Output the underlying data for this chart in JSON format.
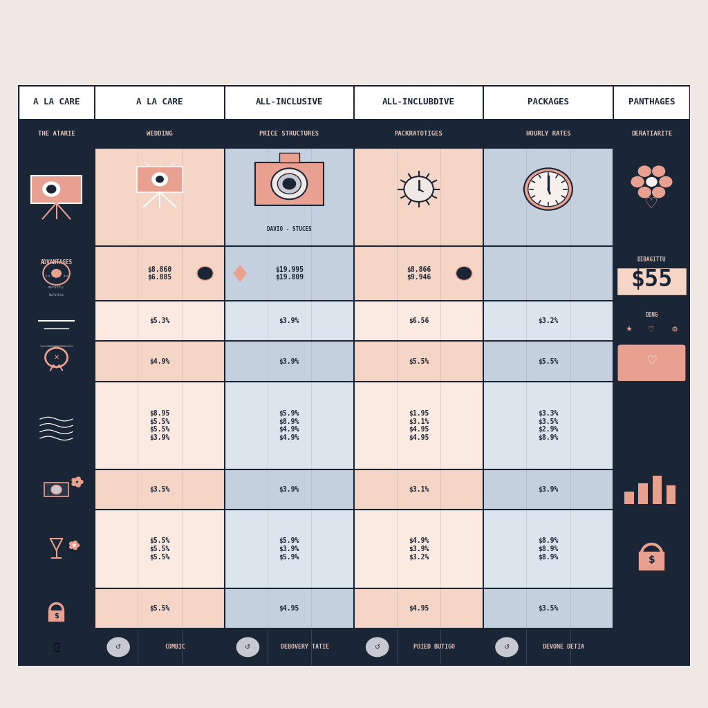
{
  "bg_color": "#f0e8e4",
  "header_bg": "#ffffff",
  "header_border": "#1a2535",
  "header_text_color": "#1a2535",
  "subheader_bg": "#1a2535",
  "subheader_text_color": "#e8c4b8",
  "col1_bg": "#f5d5c5",
  "col2_bg": "#c5d0de",
  "col1_alt": "#faeae2",
  "col2_alt": "#dce5ee",
  "left_panel_bg": "#1a2535",
  "right_panel_bg": "#1a2535",
  "footer_bg": "#1a2535",
  "text_dark": "#1a2535",
  "text_salmon": "#e8a090",
  "columns": [
    "A LA CARE",
    "A LA CARE",
    "ALL-INCLUSIVE",
    "ALL-INCLUBDIVE",
    "PACKAGES",
    "PANTHAGES"
  ],
  "subheaders": [
    "THE ATARIE",
    "WEDDING",
    "PRICE STRUCTURES",
    "PACKRATOTIGES",
    "HOURLY RATES",
    "DERATIARITE"
  ],
  "footer_labels": [
    "COMBIC",
    "DEBOVERY TATIE",
    "POIED BUTIGO",
    "DEVONE DETIA"
  ],
  "row_data": [
    [
      "$8.860\n$6.885",
      "$19.995\n$19.809",
      "$8.866\n$9.946",
      ""
    ],
    [
      "$5.3%",
      "$3.9%",
      "$6.56",
      "$3.2%"
    ],
    [
      "$4.9%",
      "$3.9%",
      "$5.5%",
      "$5.5%"
    ],
    [
      "$8.95\n$5.5%\n$5.5%\n$3.9%",
      "$5.9%\n$8.9%\n$4.9%\n$4.9%",
      "$1.95\n$3.1%\n$4.95\n$4.95",
      "$3.3%\n$3.5%\n$2.9%\n$8.9%"
    ],
    [
      "$3.5%",
      "$3.9%",
      "$3.1%",
      "$3.9%"
    ],
    [
      "$5.5%\n$5.5%\n$5.5%",
      "$5.9%\n$3.9%\n$5.9%",
      "$4.9%\n$3.9%\n$3.2%",
      "$8.9%\n$8.9%\n$8.9%"
    ],
    [
      "$5.5%",
      "$4.95",
      "$4.95",
      "$3.5%"
    ]
  ],
  "left_row_labels": [
    "ADVANTAGES",
    "",
    "",
    "",
    "",
    "",
    ""
  ],
  "dibagittu_text": "DIBAGITTU",
  "dibagittu_price": "$55",
  "ding_text": "DING",
  "davio_label": "DAVIO - STUCES",
  "accent_color": "#e8a090"
}
